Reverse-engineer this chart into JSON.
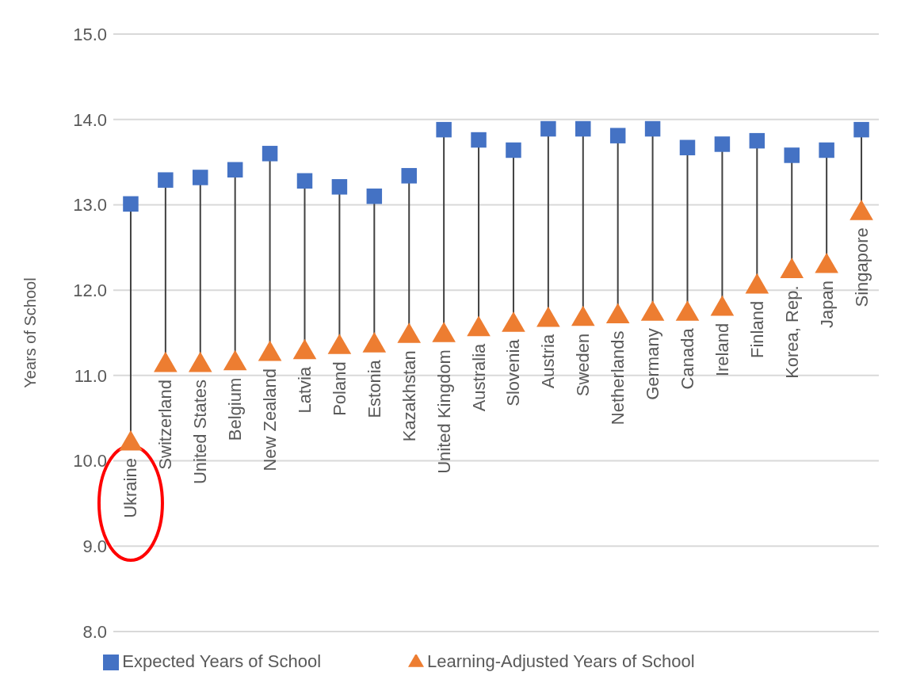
{
  "chart_data": {
    "type": "scatter",
    "ylabel": "Years of School",
    "categories": [
      "Ukraine",
      "Switzerland",
      "United States",
      "Belgium",
      "New Zealand",
      "Latvia",
      "Poland",
      "Estonia",
      "Kazakhstan",
      "United Kingdom",
      "Australia",
      "Slovenia",
      "Austria",
      "Sweden",
      "Netherlands",
      "Germany",
      "Canada",
      "Ireland",
      "Finland",
      "Korea, Rep.",
      "Japan",
      "Singapore"
    ],
    "series": [
      {
        "name": "Expected Years of School",
        "color": "#4472c4",
        "marker": "square",
        "values": [
          13.01,
          13.29,
          13.32,
          13.41,
          13.6,
          13.28,
          13.21,
          13.1,
          13.34,
          13.88,
          13.76,
          13.64,
          13.89,
          13.89,
          13.81,
          13.89,
          13.67,
          13.71,
          13.75,
          13.58,
          13.64,
          13.88
        ]
      },
      {
        "name": "Learning-Adjusted Years of School",
        "color": "#ed7d31",
        "marker": "triangle",
        "values": [
          10.2,
          11.12,
          11.12,
          11.14,
          11.25,
          11.27,
          11.33,
          11.35,
          11.46,
          11.47,
          11.54,
          11.59,
          11.65,
          11.66,
          11.69,
          11.72,
          11.72,
          11.78,
          12.04,
          12.22,
          12.28,
          12.9
        ]
      }
    ],
    "ylim": [
      8,
      15
    ],
    "yticks": [
      {
        "value": 8,
        "label": "8.0"
      },
      {
        "value": 9,
        "label": "9.0"
      },
      {
        "value": 10,
        "label": "10.0"
      },
      {
        "value": 11,
        "label": "11.0"
      },
      {
        "value": 12,
        "label": "12.0"
      },
      {
        "value": 13,
        "label": "13.0"
      },
      {
        "value": 14,
        "label": "14.0"
      },
      {
        "value": 15,
        "label": "15.0"
      }
    ],
    "grid": "y",
    "legend": "bottom"
  }
}
